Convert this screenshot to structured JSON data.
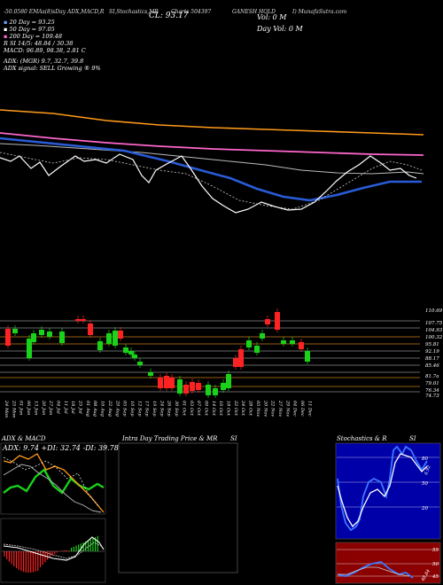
{
  "header": {
    "row1": [
      "-50.0580 EMAs(8)sDay ADX,MACD,R",
      "SI,Stochastics,MR",
      "Charts 504397",
      "GANESH HOLD",
      "I) MunafaSutra.com"
    ],
    "cl_label": "CL: 93.17",
    "vol_label": "Vol: 0  M",
    "day_vol_label": "Day Vol: 0  M",
    "ma_lines": [
      {
        "label": "20  Day = 93.25",
        "color": "#6aa2ff"
      },
      {
        "label": "50  Day = 97.05",
        "color": "#ffffff"
      },
      {
        "label": "200  Day = 109.48",
        "color": "#ff66cc"
      }
    ],
    "stats": [
      "R                    SI 14/5: 48.84  / 30.38",
      "MACD: 96.89, 98.38, 2.81 C",
      "ADX:                  (MGR) 9.7, 32.7, 39.8",
      "ADX  signal: SELL  Growing ® 9%"
    ]
  },
  "price_axis": [
    "110.69",
    "107.75",
    "104.93",
    "100.32",
    "95.81",
    "92.19",
    "88.17",
    "85.46",
    "81.7a",
    "79.01",
    "76.34",
    "74.73"
  ],
  "date_axis": [
    "24 Mon",
    "25 Mon",
    "01 Jun",
    "06 Jun",
    "13 Jun",
    "20 Jun",
    "27 Jun",
    "04 Jul",
    "11 Jul",
    "18 Jul",
    "25 Jul",
    "01 Aug",
    "08 Aug",
    "16 Aug",
    "22 Aug",
    "29 Aug",
    "05 Sep",
    "10 Sep",
    "12 Sep",
    "17 Sep",
    "19 Sep",
    "24 Sep",
    "26 Sep",
    "30 Sep",
    "01 Oct",
    "03 Oct",
    "07 Oct",
    "09 Oct",
    "14 Oct",
    "16 Oct",
    "18 Oct",
    "22 Oct",
    "24 Oct",
    "28 Oct",
    "05 Nov",
    "20 Nov",
    "22 Nov",
    "27 Nov",
    "29 Nov",
    "04 Dec",
    "06 Dec",
    "11 Dec"
  ],
  "panels": {
    "adx_title": "ADX  & MACD",
    "adx_values": "ADX: 9.74  +DI: 32.74  -DI: 39.78",
    "intra_title": "Intra  Day Trading Price  & MR",
    "intra_si": "SI",
    "stoch_title": "Stochastics & R",
    "stoch_si": "SI",
    "stoch_levels": [
      "80",
      "50",
      "20"
    ],
    "rsi_levels": [
      "55",
      "50",
      "45"
    ],
    "stoch_value": "6.92",
    "rsi_value": "48.84"
  },
  "chart_data": {
    "type": "candlestick",
    "title": "Charts 504397 GANESH HOLD",
    "ma_series": [
      {
        "name": "20  Day",
        "color": "#2a5bd7"
      },
      {
        "name": "50  Day",
        "color": "#cccccc"
      },
      {
        "name": "200  Day",
        "color": "#ff66cc"
      }
    ],
    "colors": {
      "up": "#19d219",
      "down": "#ff2222",
      "ema_orange": "#ff9a1a",
      "level_line": "#c87a1a"
    }
  }
}
